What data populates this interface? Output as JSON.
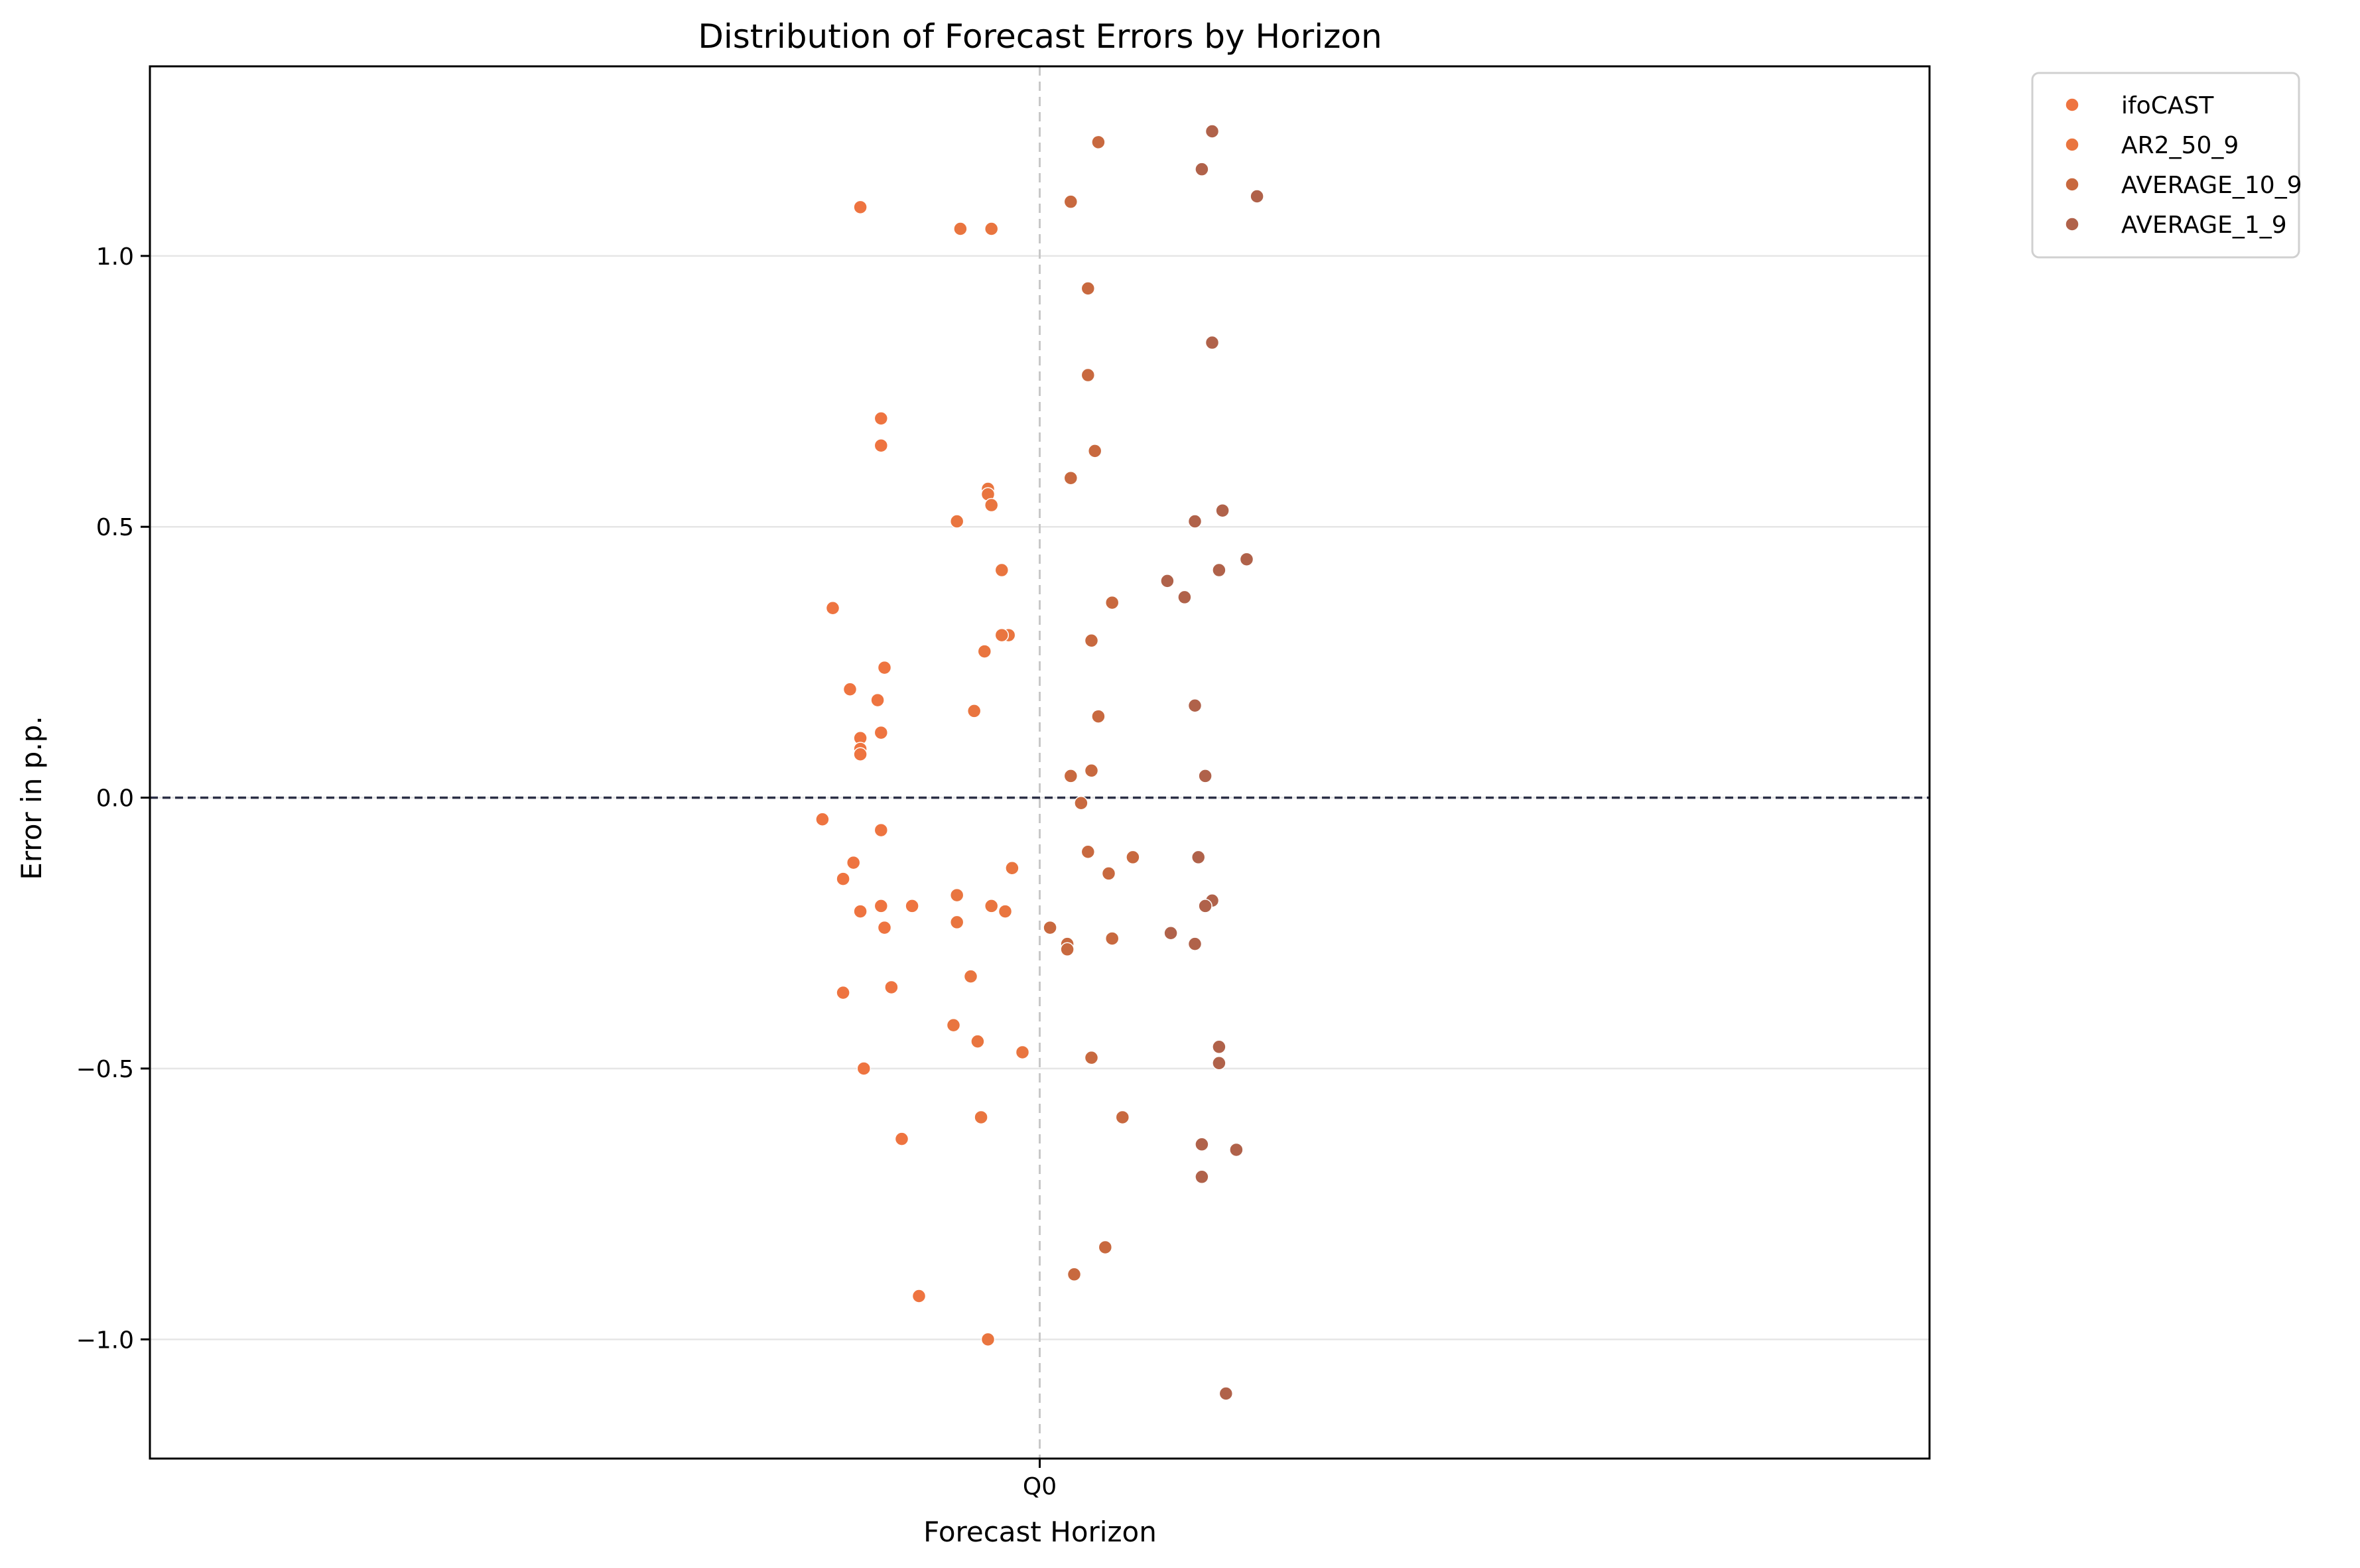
{
  "chart_data": {
    "type": "scatter",
    "title": "Distribution of Forecast Errors by Horizon",
    "xlabel": "Forecast Horizon",
    "ylabel": "Error in p.p.",
    "categories": [
      "Q0"
    ],
    "ylim": [
      -1.22,
      1.35
    ],
    "yticks": [
      -1.0,
      -0.5,
      0.0,
      0.5,
      1.0
    ],
    "ytick_labels": [
      "−1.0",
      "−0.5",
      "0.0",
      "0.5",
      "1.0"
    ],
    "grid": "horizontal",
    "zero_line": true,
    "legend_position": "outside-top-right",
    "series": [
      {
        "name": "ifoCAST",
        "color": "#EE7440",
        "points": [
          {
            "x": -0.52,
            "y": 1.09
          },
          {
            "x": -0.46,
            "y": 0.7
          },
          {
            "x": -0.46,
            "y": 0.65
          },
          {
            "x": -0.6,
            "y": 0.35
          },
          {
            "x": -0.45,
            "y": 0.24
          },
          {
            "x": -0.55,
            "y": 0.2
          },
          {
            "x": -0.47,
            "y": 0.18
          },
          {
            "x": -0.46,
            "y": 0.12
          },
          {
            "x": -0.52,
            "y": 0.11
          },
          {
            "x": -0.52,
            "y": 0.09
          },
          {
            "x": -0.52,
            "y": 0.08
          },
          {
            "x": -0.63,
            "y": -0.04
          },
          {
            "x": -0.46,
            "y": -0.06
          },
          {
            "x": -0.54,
            "y": -0.12
          },
          {
            "x": -0.57,
            "y": -0.15
          },
          {
            "x": -0.46,
            "y": -0.2
          },
          {
            "x": -0.52,
            "y": -0.21
          },
          {
            "x": -0.37,
            "y": -0.2
          },
          {
            "x": -0.45,
            "y": -0.24
          },
          {
            "x": -0.57,
            "y": -0.36
          },
          {
            "x": -0.43,
            "y": -0.35
          },
          {
            "x": -0.51,
            "y": -0.5
          },
          {
            "x": -0.4,
            "y": -0.63
          },
          {
            "x": -0.35,
            "y": -0.92
          }
        ]
      },
      {
        "name": "AR2_50_9",
        "color": "#E9753F",
        "points": [
          {
            "x": -0.23,
            "y": 1.05
          },
          {
            "x": -0.14,
            "y": 1.05
          },
          {
            "x": -0.15,
            "y": 0.57
          },
          {
            "x": -0.15,
            "y": 0.56
          },
          {
            "x": -0.14,
            "y": 0.54
          },
          {
            "x": -0.24,
            "y": 0.51
          },
          {
            "x": -0.11,
            "y": 0.42
          },
          {
            "x": -0.09,
            "y": 0.3
          },
          {
            "x": -0.11,
            "y": 0.3
          },
          {
            "x": -0.16,
            "y": 0.27
          },
          {
            "x": -0.19,
            "y": 0.16
          },
          {
            "x": -0.08,
            "y": -0.13
          },
          {
            "x": -0.24,
            "y": -0.18
          },
          {
            "x": -0.14,
            "y": -0.2
          },
          {
            "x": -0.1,
            "y": -0.21
          },
          {
            "x": -0.24,
            "y": -0.23
          },
          {
            "x": -0.2,
            "y": -0.33
          },
          {
            "x": -0.25,
            "y": -0.42
          },
          {
            "x": -0.18,
            "y": -0.45
          },
          {
            "x": -0.05,
            "y": -0.47
          },
          {
            "x": -0.17,
            "y": -0.59
          },
          {
            "x": -0.15,
            "y": -1.0
          }
        ]
      },
      {
        "name": "AVERAGE_10_9",
        "color": "#C8693F",
        "points": [
          {
            "x": 0.17,
            "y": 1.21
          },
          {
            "x": 0.09,
            "y": 1.1
          },
          {
            "x": 0.14,
            "y": 0.94
          },
          {
            "x": 0.14,
            "y": 0.78
          },
          {
            "x": 0.16,
            "y": 0.64
          },
          {
            "x": 0.09,
            "y": 0.59
          },
          {
            "x": 0.21,
            "y": 0.36
          },
          {
            "x": 0.15,
            "y": 0.29
          },
          {
            "x": 0.17,
            "y": 0.15
          },
          {
            "x": 0.09,
            "y": 0.04
          },
          {
            "x": 0.15,
            "y": 0.05
          },
          {
            "x": 0.12,
            "y": -0.01
          },
          {
            "x": 0.14,
            "y": -0.1
          },
          {
            "x": 0.27,
            "y": -0.11
          },
          {
            "x": 0.2,
            "y": -0.14
          },
          {
            "x": 0.03,
            "y": -0.24
          },
          {
            "x": 0.08,
            "y": -0.27
          },
          {
            "x": 0.08,
            "y": -0.28
          },
          {
            "x": 0.21,
            "y": -0.26
          },
          {
            "x": 0.15,
            "y": -0.48
          },
          {
            "x": 0.24,
            "y": -0.59
          },
          {
            "x": 0.19,
            "y": -0.83
          },
          {
            "x": 0.1,
            "y": -0.88
          }
        ]
      },
      {
        "name": "AVERAGE_1_9",
        "color": "#B0624A",
        "points": [
          {
            "x": 0.5,
            "y": 1.23
          },
          {
            "x": 0.47,
            "y": 1.16
          },
          {
            "x": 0.63,
            "y": 1.11
          },
          {
            "x": 0.5,
            "y": 0.84
          },
          {
            "x": 0.53,
            "y": 0.53
          },
          {
            "x": 0.45,
            "y": 0.51
          },
          {
            "x": 0.6,
            "y": 0.44
          },
          {
            "x": 0.52,
            "y": 0.42
          },
          {
            "x": 0.37,
            "y": 0.4
          },
          {
            "x": 0.42,
            "y": 0.37
          },
          {
            "x": 0.45,
            "y": 0.17
          },
          {
            "x": 0.48,
            "y": 0.04
          },
          {
            "x": 0.46,
            "y": -0.11
          },
          {
            "x": 0.5,
            "y": -0.19
          },
          {
            "x": 0.48,
            "y": -0.2
          },
          {
            "x": 0.38,
            "y": -0.25
          },
          {
            "x": 0.45,
            "y": -0.27
          },
          {
            "x": 0.52,
            "y": -0.46
          },
          {
            "x": 0.52,
            "y": -0.49
          },
          {
            "x": 0.47,
            "y": -0.64
          },
          {
            "x": 0.57,
            "y": -0.65
          },
          {
            "x": 0.47,
            "y": -0.7
          },
          {
            "x": 0.54,
            "y": -1.1
          }
        ]
      }
    ]
  }
}
